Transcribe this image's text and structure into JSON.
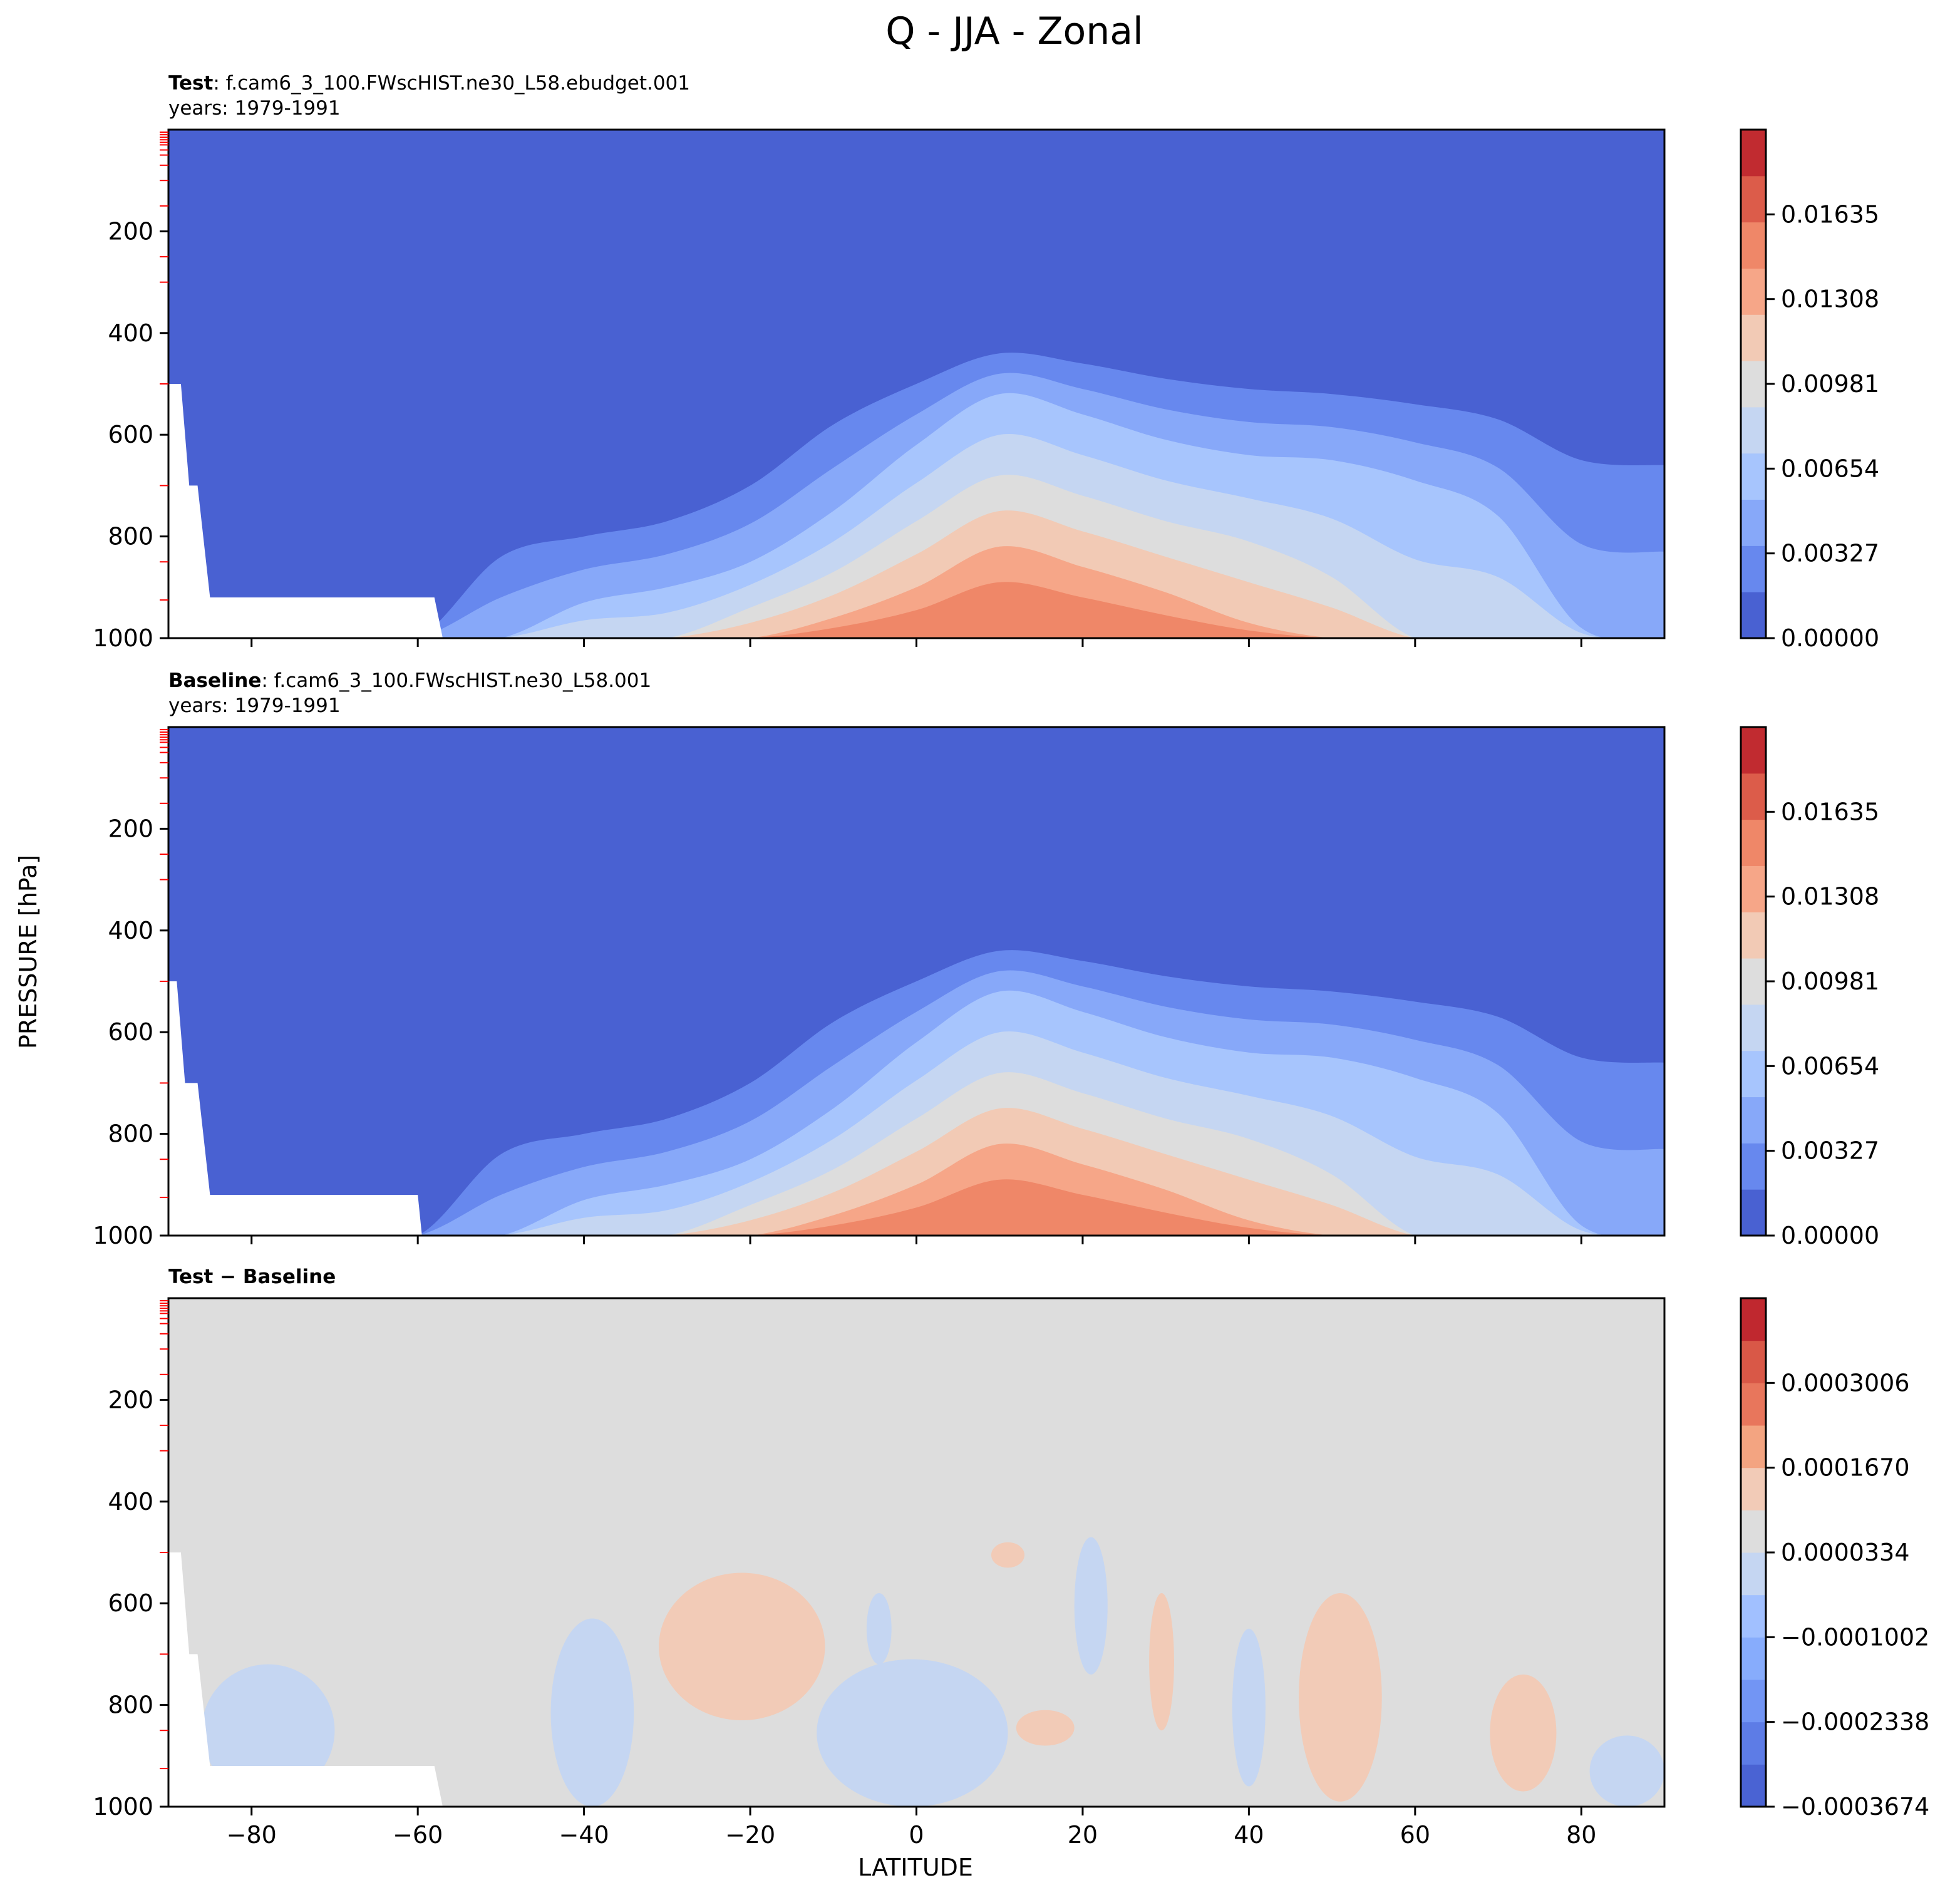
{
  "title": "Q - JJA - Zonal",
  "xlabel": "LATITUDE",
  "ylabel": "PRESSURE [hPa]",
  "chart_data": [
    {
      "type": "heatmap",
      "panel": "test",
      "label_bold": "Test",
      "label_text": ": f.cam6_3_100.FWscHIST.ne30_L58.ebudget.001",
      "years": "years: 1979-1991",
      "xlim": [
        -90,
        90
      ],
      "ylim": [
        1000,
        0
      ],
      "y_inverted": true,
      "xticks": [
        -80,
        -60,
        -40,
        -20,
        0,
        20,
        40,
        60,
        80
      ],
      "yticks": [
        200,
        400,
        600,
        800,
        1000
      ],
      "colormap": "coolwarm",
      "levels": [
        0.0,
        0.001635,
        0.00327,
        0.004905,
        0.00654,
        0.008175,
        0.00981,
        0.011445,
        0.01308,
        0.014715,
        0.01635,
        0.017985,
        0.01962
      ],
      "colorbar_ticks": [
        "0.00000",
        "0.00327",
        "0.00654",
        "0.00981",
        "0.01308",
        "0.01635"
      ],
      "colorbar_tick_values": [
        0.0,
        0.00327,
        0.00654,
        0.00981,
        0.01308,
        0.01635
      ],
      "band_colors": [
        "#4961d2",
        "#6788ee",
        "#87a8f9",
        "#a7c5fd",
        "#c5d6f2",
        "#dddddd",
        "#f2cab5",
        "#f6a688",
        "#ef8768",
        "#dc5c4a",
        "#c12b30"
      ],
      "contour_levels_pressure": {
        "lat": [
          -90,
          -80,
          -70,
          -60,
          -50,
          -40,
          -30,
          -20,
          -10,
          0,
          10,
          20,
          30,
          40,
          50,
          60,
          70,
          80,
          90
        ],
        "q_0.00327": [
          1000,
          1000,
          1000,
          1000,
          840,
          800,
          770,
          700,
          580,
          500,
          440,
          460,
          490,
          510,
          520,
          540,
          570,
          650,
          660
        ],
        "q_0.00654": [
          1000,
          1000,
          1000,
          1000,
          1000,
          930,
          900,
          850,
          750,
          620,
          520,
          560,
          610,
          640,
          650,
          690,
          760,
          980,
          1000
        ],
        "q_0.00981": [
          1000,
          1000,
          1000,
          1000,
          1000,
          1000,
          1000,
          940,
          870,
          770,
          680,
          720,
          770,
          810,
          880,
          1000,
          1000,
          1000,
          1000
        ],
        "q_0.01308": [
          1000,
          1000,
          1000,
          1000,
          1000,
          1000,
          1000,
          1000,
          960,
          900,
          820,
          860,
          910,
          970,
          1000,
          1000,
          1000,
          1000,
          1000
        ],
        "q_0.01635": [
          1000,
          1000,
          1000,
          1000,
          1000,
          1000,
          1000,
          1000,
          1000,
          990,
          960,
          980,
          1000,
          1000,
          1000,
          1000,
          1000,
          1000,
          1000
        ]
      },
      "masked_surface": "white region below surface over Antarctica (-90 to -58, 500-1000 hPa)"
    },
    {
      "type": "heatmap",
      "panel": "baseline",
      "label_bold": "Baseline",
      "label_text": ": f.cam6_3_100.FWscHIST.ne30_L58.001",
      "years": "years: 1979-1991",
      "xlim": [
        -90,
        90
      ],
      "ylim": [
        1000,
        0
      ],
      "y_inverted": true,
      "xticks": [
        -80,
        -60,
        -40,
        -20,
        0,
        20,
        40,
        60,
        80
      ],
      "yticks": [
        200,
        400,
        600,
        800,
        1000
      ],
      "colormap": "coolwarm",
      "levels": [
        0.0,
        0.001635,
        0.00327,
        0.004905,
        0.00654,
        0.008175,
        0.00981,
        0.011445,
        0.01308,
        0.014715,
        0.01635,
        0.017985,
        0.01962
      ],
      "colorbar_ticks": [
        "0.00000",
        "0.00327",
        "0.00654",
        "0.00981",
        "0.01308",
        "0.01635"
      ],
      "colorbar_tick_values": [
        0.0,
        0.00327,
        0.00654,
        0.00981,
        0.01308,
        0.01635
      ],
      "band_colors": [
        "#4961d2",
        "#6788ee",
        "#87a8f9",
        "#a7c5fd",
        "#c5d6f2",
        "#dddddd",
        "#f2cab5",
        "#f6a688",
        "#ef8768",
        "#dc5c4a",
        "#c12b30"
      ],
      "masked_surface": "white region below surface over Antarctica (-90 to -60, 500-1000 hPa)"
    },
    {
      "type": "heatmap",
      "panel": "difference",
      "label_bold": "Test − Baseline",
      "xlim": [
        -90,
        90
      ],
      "ylim": [
        1000,
        0
      ],
      "y_inverted": true,
      "xticks": [
        -80,
        -60,
        -40,
        -20,
        0,
        20,
        40,
        60,
        80
      ],
      "yticks": [
        200,
        400,
        600,
        800,
        1000
      ],
      "colormap": "coolwarm",
      "colorbar_ticks": [
        "−0.0003674",
        "−0.0002338",
        "−0.0001002",
        "0.0000334",
        "0.0001670",
        "0.0003006"
      ],
      "colorbar_tick_values": [
        -0.0003674,
        -0.0002338,
        -0.0001002,
        3.34e-05,
        0.000167,
        0.0003006
      ],
      "band_colors": [
        "#4a63d3",
        "#5d7ce6",
        "#7295f4",
        "#87acfc",
        "#a1c0ff",
        "#c5d6f2",
        "#dddddd",
        "#f2cbb7",
        "#f3a481",
        "#e8765c",
        "#d95847",
        "#c0282f"
      ],
      "background_value_approx": 0.0,
      "features": [
        {
          "sign": "negative",
          "lat_range": [
            -86,
            -70
          ],
          "p_range": [
            720,
            980
          ]
        },
        {
          "sign": "negative",
          "lat_range": [
            -44,
            -34
          ],
          "p_range": [
            630,
            1000
          ]
        },
        {
          "sign": "positive",
          "lat_range": [
            -31,
            -11
          ],
          "p_range": [
            540,
            830
          ]
        },
        {
          "sign": "negative",
          "lat_range": [
            -12,
            11
          ],
          "p_range": [
            710,
            1000
          ]
        },
        {
          "sign": "negative",
          "lat_range": [
            -6,
            -3
          ],
          "p_range": [
            580,
            720
          ]
        },
        {
          "sign": "positive",
          "lat_range": [
            9,
            13
          ],
          "p_range": [
            480,
            530
          ]
        },
        {
          "sign": "negative",
          "lat_range": [
            19,
            23
          ],
          "p_range": [
            470,
            740
          ]
        },
        {
          "sign": "positive",
          "lat_range": [
            12,
            19
          ],
          "p_range": [
            810,
            880
          ]
        },
        {
          "sign": "positive",
          "lat_range": [
            28,
            31
          ],
          "p_range": [
            580,
            850
          ]
        },
        {
          "sign": "negative",
          "lat_range": [
            38,
            42
          ],
          "p_range": [
            650,
            960
          ]
        },
        {
          "sign": "positive",
          "lat_range": [
            46,
            56
          ],
          "p_range": [
            580,
            990
          ]
        },
        {
          "sign": "positive",
          "lat_range": [
            69,
            77
          ],
          "p_range": [
            740,
            970
          ]
        },
        {
          "sign": "negative",
          "lat_range": [
            81,
            90
          ],
          "p_range": [
            860,
            1000
          ]
        }
      ]
    }
  ]
}
